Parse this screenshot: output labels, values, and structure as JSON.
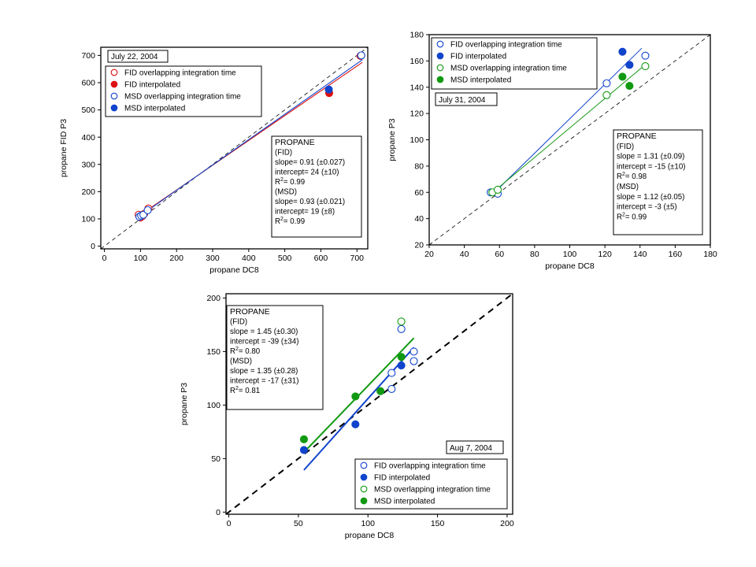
{
  "chart_data": [
    {
      "type": "scatter",
      "title": "",
      "xlabel": "propane DC8",
      "ylabel": "propane FID P3",
      "xlim": [
        -10,
        730
      ],
      "ylim": [
        -10,
        730
      ],
      "xticks": [
        0,
        100,
        200,
        300,
        400,
        500,
        600,
        700
      ],
      "yticks": [
        0,
        100,
        200,
        300,
        400,
        500,
        600,
        700
      ],
      "grid": false,
      "date_label": "July 22, 2004",
      "legend": [
        {
          "label": "FID overlapping integration time",
          "color": "#dd1111",
          "filled": false
        },
        {
          "label": "FID interpolated",
          "color": "#dd1111",
          "filled": true
        },
        {
          "label": "MSD overlapping integration time",
          "color": "#1144cc",
          "filled": false
        },
        {
          "label": "MSD interpolated",
          "color": "#1144cc",
          "filled": true
        }
      ],
      "series": [
        {
          "label_ref": 0,
          "color": "#dd1111",
          "filled": false,
          "points": [
            [
              95,
              115
            ],
            [
              100,
              105
            ],
            [
              105,
              110
            ],
            [
              110,
              118
            ],
            [
              122,
              138
            ],
            [
              710,
              698
            ]
          ]
        },
        {
          "label_ref": 1,
          "color": "#dd1111",
          "filled": true,
          "points": [
            [
              623,
              562
            ]
          ]
        },
        {
          "label_ref": 2,
          "color": "#1144cc",
          "filled": false,
          "points": [
            [
              97,
              108
            ],
            [
              102,
              112
            ],
            [
              108,
              115
            ],
            [
              120,
              132
            ],
            [
              712,
              700
            ]
          ]
        },
        {
          "label_ref": 3,
          "color": "#1144cc",
          "filled": true,
          "points": [
            [
              622,
              575
            ]
          ]
        }
      ],
      "fits": [
        {
          "color": "#dd1111",
          "slope": 0.91,
          "intercept": 24,
          "x_range": [
            90,
            715
          ]
        },
        {
          "color": "#1144cc",
          "slope": 0.93,
          "intercept": 19,
          "x_range": [
            90,
            715
          ]
        }
      ],
      "one_to_one": true,
      "stats_text": [
        "PROPANE",
        "(FID)",
        "slope= 0.91 (±0.027)",
        "intercept= 24 (±10)",
        "R",
        "= 0.99",
        "(MSD)",
        "slope= 0.93 (±0.021)",
        "intercept= 19 (±8)",
        "R",
        "= 0.99"
      ]
    },
    {
      "type": "scatter",
      "title": "",
      "xlabel": "propane DC8",
      "ylabel": "propane P3",
      "xlim": [
        20,
        180
      ],
      "ylim": [
        20,
        180
      ],
      "xticks": [
        20,
        40,
        60,
        80,
        100,
        120,
        140,
        160,
        180
      ],
      "yticks": [
        20,
        40,
        60,
        80,
        100,
        120,
        140,
        160,
        180
      ],
      "grid": false,
      "date_label": "July 31, 2004",
      "legend": [
        {
          "label": "FID overlapping integration time",
          "color": "#1144cc",
          "filled": false
        },
        {
          "label": "FID interpolated",
          "color": "#1144cc",
          "filled": true
        },
        {
          "label": "MSD overlapping integration time",
          "color": "#119911",
          "filled": false
        },
        {
          "label": "MSD interpolated",
          "color": "#119911",
          "filled": true
        }
      ],
      "series": [
        {
          "label_ref": 0,
          "color": "#1144cc",
          "filled": false,
          "points": [
            [
              55,
              60
            ],
            [
              59,
              59
            ],
            [
              121,
              143
            ],
            [
              143,
              164
            ]
          ]
        },
        {
          "label_ref": 1,
          "color": "#1144cc",
          "filled": true,
          "points": [
            [
              130,
              167
            ],
            [
              134,
              157
            ]
          ]
        },
        {
          "label_ref": 2,
          "color": "#119911",
          "filled": false,
          "points": [
            [
              56,
              60
            ],
            [
              59,
              62
            ],
            [
              121,
              134
            ],
            [
              143,
              156
            ]
          ]
        },
        {
          "label_ref": 3,
          "color": "#119911",
          "filled": true,
          "points": [
            [
              130,
              148
            ],
            [
              134,
              141
            ]
          ]
        }
      ],
      "fits": [
        {
          "color": "#1144cc",
          "slope": 1.31,
          "intercept": -15,
          "x_range": [
            57,
            141
          ]
        },
        {
          "color": "#119911",
          "slope": 1.12,
          "intercept": -3,
          "x_range": [
            57,
            141
          ]
        }
      ],
      "one_to_one": true,
      "stats_text": [
        "PROPANE",
        "(FID)",
        "slope = 1.31 (±0.09)",
        "intercept = -15 (±10)",
        "R",
        "= 0.98",
        "(MSD)",
        "slope = 1.12 (±0.05)",
        "intercept = -3 (±5)",
        "R",
        "= 0.99"
      ]
    },
    {
      "type": "scatter",
      "title": "",
      "xlabel": "propane DC8",
      "ylabel": "propane P3",
      "xlim": [
        -2,
        204
      ],
      "ylim": [
        -2,
        204
      ],
      "xticks": [
        0,
        50,
        100,
        150,
        200
      ],
      "yticks": [
        0,
        50,
        100,
        150,
        200
      ],
      "grid": false,
      "date_label": "Aug 7, 2004",
      "legend": [
        {
          "label": "FID overlapping integration time",
          "color": "#1144cc",
          "filled": false
        },
        {
          "label": "FID interpolated",
          "color": "#1144cc",
          "filled": true
        },
        {
          "label": "MSD overlapping integration time",
          "color": "#119911",
          "filled": false
        },
        {
          "label": "MSD interpolated",
          "color": "#119911",
          "filled": true
        }
      ],
      "series": [
        {
          "label_ref": 0,
          "color": "#1144cc",
          "filled": false,
          "points": [
            [
              117,
              115
            ],
            [
              117,
              130
            ],
            [
              124,
              171
            ],
            [
              133,
              150
            ],
            [
              133,
              141
            ]
          ]
        },
        {
          "label_ref": 1,
          "color": "#1144cc",
          "filled": true,
          "points": [
            [
              54,
              58
            ],
            [
              91,
              82
            ],
            [
              124,
              137
            ]
          ]
        },
        {
          "label_ref": 2,
          "color": "#119911",
          "filled": false,
          "points": [
            [
              124,
              178
            ]
          ]
        },
        {
          "label_ref": 3,
          "color": "#119911",
          "filled": true,
          "points": [
            [
              54,
              68
            ],
            [
              91,
              108
            ],
            [
              109,
              113
            ],
            [
              124,
              145
            ]
          ]
        }
      ],
      "fits": [
        {
          "color": "#1144cc",
          "slope": 1.45,
          "intercept": -39,
          "x_range": [
            54,
            133
          ]
        },
        {
          "color": "#119911",
          "slope": 1.35,
          "intercept": -17,
          "x_range": [
            54,
            133
          ]
        }
      ],
      "one_to_one": true,
      "stats_text": [
        "PROPANE",
        "(FID)",
        "slope = 1.45 (±0.30)",
        "intercept = -39 (±34)",
        "R",
        "= 0.80",
        "(MSD)",
        "slope = 1.35 (±0.28)",
        "intercept = -17 (±31)",
        "R",
        "= 0.81"
      ]
    }
  ]
}
